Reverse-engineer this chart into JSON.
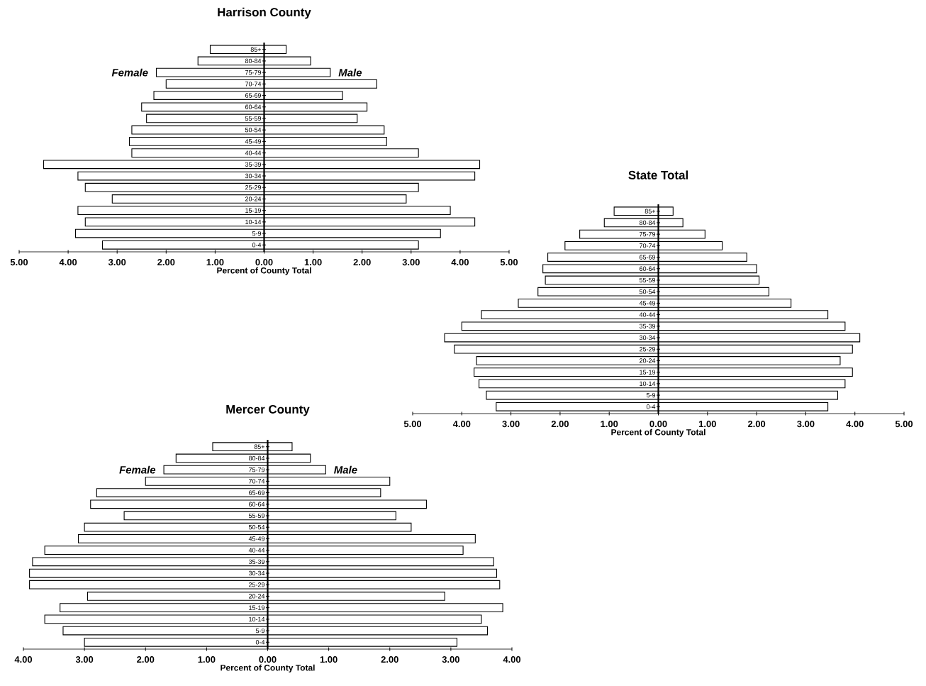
{
  "chart_data": [
    {
      "type": "bar",
      "orientation": "horizontal",
      "stacked": true,
      "title": "Harrison County",
      "xlabel": "Percent of County Total",
      "categories": [
        "85+",
        "80-84",
        "75-79",
        "70-74",
        "65-69",
        "60-64",
        "55-59",
        "50-54",
        "45-49",
        "40-44",
        "35-39",
        "30-34",
        "25-29",
        "20-24",
        "15-19",
        "10-14",
        "5-9",
        "0-4"
      ],
      "series": [
        {
          "name": "Female",
          "color": "#ffffff",
          "values": [
            -1.1,
            -1.35,
            -2.2,
            -2.0,
            -2.25,
            -2.5,
            -2.4,
            -2.7,
            -2.75,
            -2.7,
            -4.5,
            -3.8,
            -3.65,
            -3.1,
            -3.8,
            -3.65,
            -3.85,
            -3.3
          ]
        },
        {
          "name": "Male",
          "color": "#ffffff",
          "values": [
            0.45,
            0.95,
            1.35,
            2.3,
            1.6,
            2.1,
            1.9,
            2.45,
            2.5,
            3.15,
            4.4,
            4.3,
            3.15,
            2.9,
            3.8,
            4.3,
            3.6,
            3.15
          ]
        }
      ],
      "xlim": [
        -5,
        5
      ],
      "xticks": [
        {
          "value": -5,
          "label": "5.00"
        },
        {
          "value": -4,
          "label": "4.00"
        },
        {
          "value": -3,
          "label": "3.00"
        },
        {
          "value": -2,
          "label": "2.00"
        },
        {
          "value": -1,
          "label": "1.00"
        },
        {
          "value": 0,
          "label": "0.00"
        },
        {
          "value": 1,
          "label": "1.00"
        },
        {
          "value": 2,
          "label": "2.00"
        },
        {
          "value": 3,
          "label": "3.00"
        },
        {
          "value": 4,
          "label": "4.00"
        },
        {
          "value": 5,
          "label": "5.00"
        }
      ]
    },
    {
      "type": "bar",
      "orientation": "horizontal",
      "stacked": true,
      "title": "State Total",
      "xlabel": "Percent of County Total",
      "categories": [
        "85+",
        "80-84",
        "75-79",
        "70-74",
        "65-69",
        "60-64",
        "55-59",
        "50-54",
        "45-49",
        "40-44",
        "35-39",
        "30-34",
        "25-29",
        "20-24",
        "15-19",
        "10-14",
        "5-9",
        "0-4"
      ],
      "series": [
        {
          "color": "#ffffff",
          "values": [
            -0.9,
            -1.1,
            -1.6,
            -1.9,
            -2.25,
            -2.35,
            -2.3,
            -2.45,
            -2.85,
            -3.6,
            -4.0,
            -4.35,
            -4.15,
            -3.7,
            -3.75,
            -3.65,
            -3.5,
            -3.3
          ]
        },
        {
          "color": "#ffffff",
          "values": [
            0.3,
            0.5,
            0.95,
            1.3,
            1.8,
            2.0,
            2.05,
            2.25,
            2.7,
            3.45,
            3.8,
            4.1,
            3.95,
            3.7,
            3.95,
            3.8,
            3.65,
            3.45
          ]
        }
      ],
      "xlim": [
        -5,
        5
      ],
      "xticks": [
        {
          "value": -5,
          "label": "5.00"
        },
        {
          "value": -4,
          "label": "4.00"
        },
        {
          "value": -3,
          "label": "3.00"
        },
        {
          "value": -2,
          "label": "2.00"
        },
        {
          "value": -1,
          "label": "1.00"
        },
        {
          "value": 0,
          "label": "0.00"
        },
        {
          "value": 1,
          "label": "1.00"
        },
        {
          "value": 2,
          "label": "2.00"
        },
        {
          "value": 3,
          "label": "3.00"
        },
        {
          "value": 4,
          "label": "4.00"
        },
        {
          "value": 5,
          "label": "5.00"
        }
      ]
    },
    {
      "type": "bar",
      "orientation": "horizontal",
      "stacked": true,
      "title": "Mercer County",
      "xlabel": "Percent of County Total",
      "categories": [
        "85+",
        "80-84",
        "75-79",
        "70-74",
        "65-69",
        "60-64",
        "55-59",
        "50-54",
        "45-49",
        "40-44",
        "35-39",
        "30-34",
        "25-29",
        "20-24",
        "15-19",
        "10-14",
        "5-9",
        "0-4"
      ],
      "series": [
        {
          "name": "Female",
          "color": "#ffffff",
          "values": [
            -0.9,
            -1.5,
            -1.7,
            -2.0,
            -2.8,
            -2.9,
            -2.35,
            -3.0,
            -3.1,
            -3.65,
            -3.85,
            -3.9,
            -3.9,
            -2.95,
            -3.4,
            -3.65,
            -3.35,
            -3.0
          ]
        },
        {
          "name": "Male",
          "color": "#ffffff",
          "values": [
            0.4,
            0.7,
            0.95,
            2.0,
            1.85,
            2.6,
            2.1,
            2.35,
            3.4,
            3.2,
            3.7,
            3.75,
            3.8,
            2.9,
            3.85,
            3.5,
            3.6,
            3.1
          ]
        }
      ],
      "xlim": [
        -4,
        4
      ],
      "xticks": [
        {
          "value": -4,
          "label": "4.00"
        },
        {
          "value": -3,
          "label": "3.00"
        },
        {
          "value": -2,
          "label": "2.00"
        },
        {
          "value": -1,
          "label": "1.00"
        },
        {
          "value": 0,
          "label": "0.00"
        },
        {
          "value": 1,
          "label": "1.00"
        },
        {
          "value": 2,
          "label": "2.00"
        },
        {
          "value": 3,
          "label": "3.00"
        },
        {
          "value": 4,
          "label": "4.00"
        }
      ]
    }
  ]
}
